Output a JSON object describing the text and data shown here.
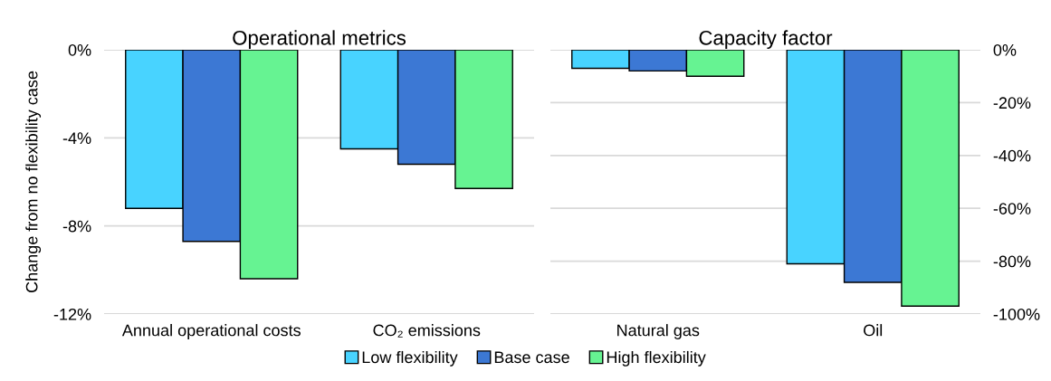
{
  "chart_data": [
    {
      "type": "bar",
      "title": "Operational metrics",
      "ylabel": "Change from no flexibility case",
      "categories": [
        "Annual operational costs",
        "CO₂ emissions"
      ],
      "series": [
        {
          "name": "Low flexibility",
          "color": "#48d3ff",
          "values": [
            -7.2,
            -4.5
          ]
        },
        {
          "name": "Base case",
          "color": "#3c78d4",
          "values": [
            -8.7,
            -5.2
          ]
        },
        {
          "name": "High flexibility",
          "color": "#66f392",
          "values": [
            -10.4,
            -6.3
          ]
        }
      ],
      "ylim": [
        -12,
        0
      ],
      "yticks": [
        {
          "value": 0,
          "label": "0%"
        },
        {
          "value": -4,
          "label": "-4%"
        },
        {
          "value": -8,
          "label": "-8%"
        },
        {
          "value": -12,
          "label": "-12%"
        }
      ],
      "grid": "y",
      "legend": "bottom"
    },
    {
      "type": "bar",
      "title": "Capacity factor",
      "categories": [
        "Natural gas",
        "Oil"
      ],
      "series": [
        {
          "color": "#48d3ff",
          "values": [
            -7,
            -81
          ]
        },
        {
          "color": "#3c78d4",
          "values": [
            -8,
            -88
          ]
        },
        {
          "color": "#66f392",
          "values": [
            -10,
            -97
          ]
        }
      ],
      "ylim": [
        -100,
        0
      ],
      "yticks": [
        {
          "value": 0,
          "label": "0%"
        },
        {
          "value": -20,
          "label": "-20%"
        },
        {
          "value": -40,
          "label": "-40%"
        },
        {
          "value": -60,
          "label": "-60%"
        },
        {
          "value": -80,
          "label": "-80%"
        },
        {
          "value": -100,
          "label": "-100%"
        }
      ],
      "grid": "y"
    }
  ]
}
